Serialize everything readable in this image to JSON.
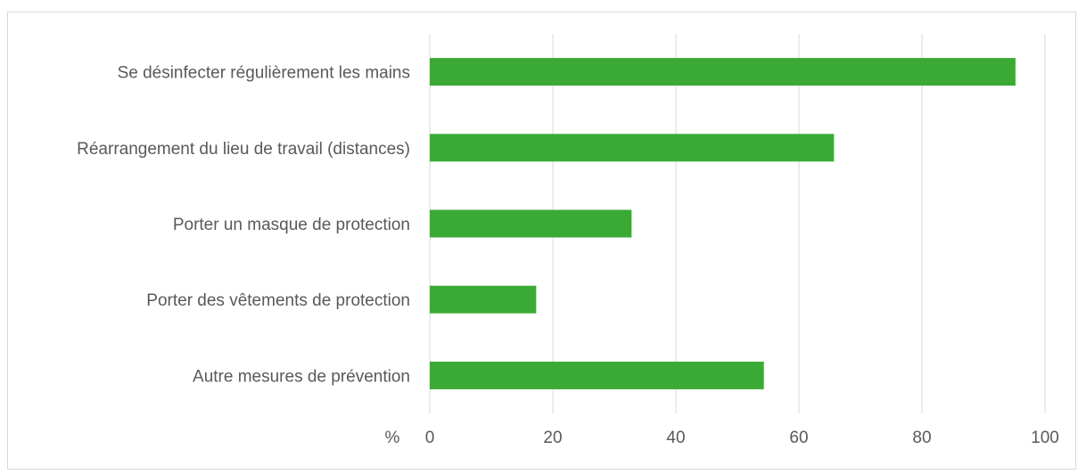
{
  "chart_data": {
    "type": "bar",
    "orientation": "horizontal",
    "categories": [
      "Se désinfecter régulièrement les mains",
      "Réarrangement du lieu de travail (distances)",
      "Porter un masque de protection",
      "Porter des vêtements de protection",
      "Autre mesures de prévention"
    ],
    "values": [
      95.2,
      65.7,
      32.8,
      17.3,
      54.3
    ],
    "xlim": [
      0,
      100
    ],
    "xticks": [
      0,
      20,
      40,
      60,
      80,
      100
    ],
    "xunit": "%",
    "bar_color": "#3aaa35",
    "grid": true
  }
}
